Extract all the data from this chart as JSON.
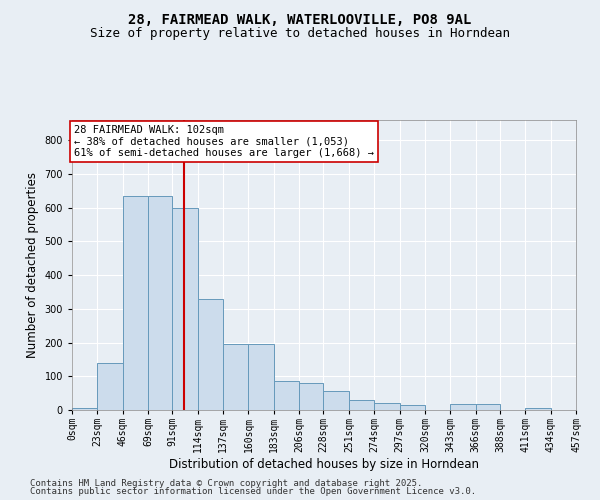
{
  "title_line1": "28, FAIRMEAD WALK, WATERLOOVILLE, PO8 9AL",
  "title_line2": "Size of property relative to detached houses in Horndean",
  "xlabel": "Distribution of detached houses by size in Horndean",
  "ylabel": "Number of detached properties",
  "bin_edges": [
    0,
    23,
    46,
    69,
    91,
    114,
    137,
    160,
    183,
    206,
    228,
    251,
    274,
    297,
    320,
    343,
    366,
    388,
    411,
    434,
    457
  ],
  "bin_labels": [
    "0sqm",
    "23sqm",
    "46sqm",
    "69sqm",
    "91sqm",
    "114sqm",
    "137sqm",
    "160sqm",
    "183sqm",
    "206sqm",
    "228sqm",
    "251sqm",
    "274sqm",
    "297sqm",
    "320sqm",
    "343sqm",
    "366sqm",
    "388sqm",
    "411sqm",
    "434sqm",
    "457sqm"
  ],
  "bar_heights": [
    5,
    140,
    635,
    635,
    600,
    330,
    195,
    195,
    85,
    80,
    55,
    30,
    20,
    15,
    0,
    18,
    18,
    0,
    5,
    0
  ],
  "property_size": 102,
  "bar_color": "#ccdcec",
  "bar_edge_color": "#6699bb",
  "vline_color": "#cc0000",
  "annotation_text": "28 FAIRMEAD WALK: 102sqm\n← 38% of detached houses are smaller (1,053)\n61% of semi-detached houses are larger (1,668) →",
  "annotation_box_color": "#ffffff",
  "annotation_box_edge": "#cc0000",
  "ylim": [
    0,
    860
  ],
  "yticks": [
    0,
    100,
    200,
    300,
    400,
    500,
    600,
    700,
    800
  ],
  "background_color": "#e8eef4",
  "plot_background": "#e8eef4",
  "footer_line1": "Contains HM Land Registry data © Crown copyright and database right 2025.",
  "footer_line2": "Contains public sector information licensed under the Open Government Licence v3.0.",
  "title_fontsize": 10,
  "subtitle_fontsize": 9,
  "axis_label_fontsize": 8.5,
  "tick_fontsize": 7,
  "annotation_fontsize": 7.5,
  "footer_fontsize": 6.5
}
